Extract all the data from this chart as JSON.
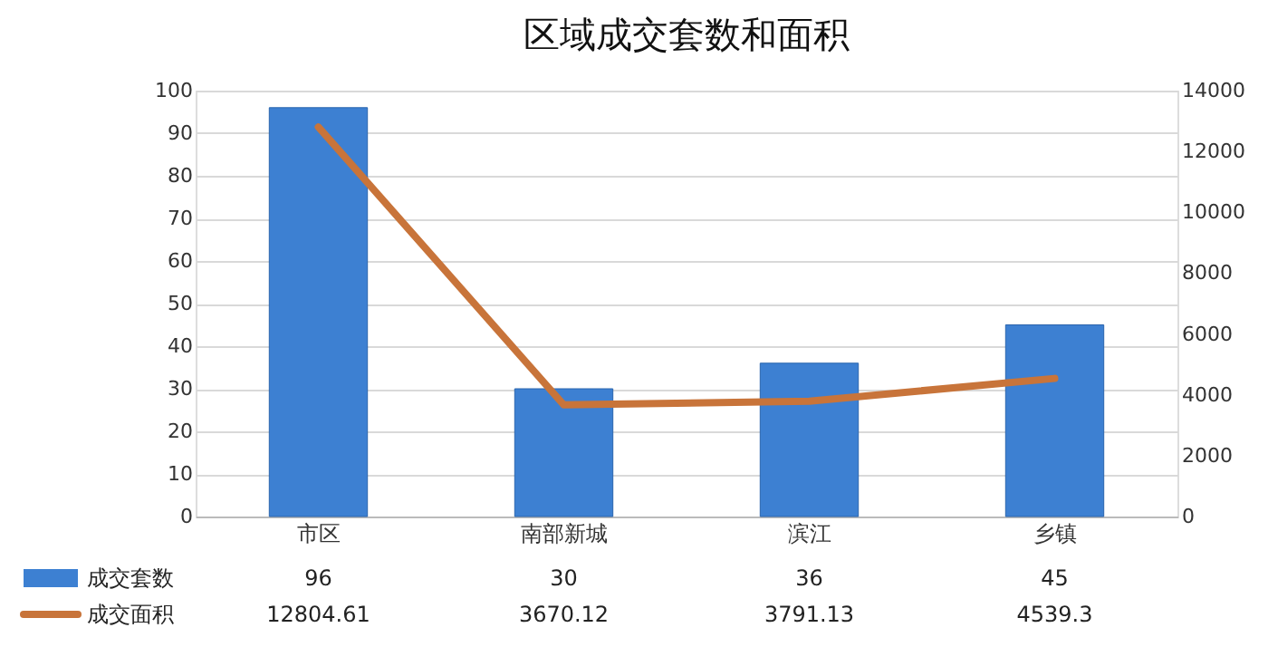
{
  "chart_data": {
    "type": "bar",
    "title": "区域成交套数和面积",
    "categories": [
      "市区",
      "南部新城",
      "滨江",
      "乡镇"
    ],
    "series": [
      {
        "name": "成交套数",
        "color": "#3d80d2",
        "values": [
          96,
          30,
          36,
          45
        ]
      },
      {
        "name": "成交面积",
        "type": "line",
        "axis": "y2",
        "color": "#c8743a",
        "values": [
          12804.61,
          3670.12,
          3791.13,
          4539.3
        ]
      }
    ],
    "value_labels": [
      [
        "96",
        "30",
        "36",
        "45"
      ],
      [
        "12804.61",
        "3670.12",
        "3791.13",
        "4539.3"
      ]
    ],
    "data_labels": true,
    "ylim": [
      0,
      100
    ],
    "yticks": [
      0,
      10,
      20,
      30,
      40,
      50,
      60,
      70,
      80,
      90,
      100
    ],
    "y2lim": [
      0,
      14000
    ],
    "y2ticks": [
      0,
      2000,
      4000,
      6000,
      8000,
      10000,
      12000,
      14000
    ],
    "grid": "y",
    "legend": "bottom"
  }
}
